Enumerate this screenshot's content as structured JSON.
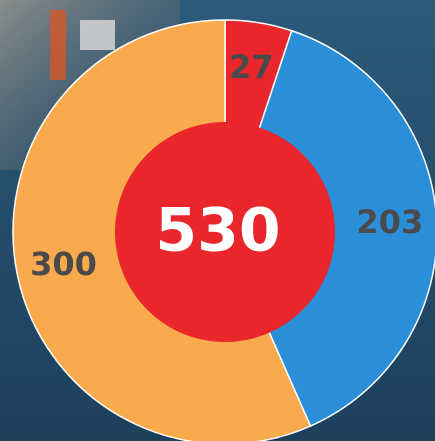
{
  "chart_data": {
    "type": "donut",
    "values": [
      27,
      203,
      300
    ],
    "colors": [
      "#e8262c",
      "#2a8fd8",
      "#f9aa4c"
    ],
    "total": 530,
    "center_color": "#e8262c"
  }
}
